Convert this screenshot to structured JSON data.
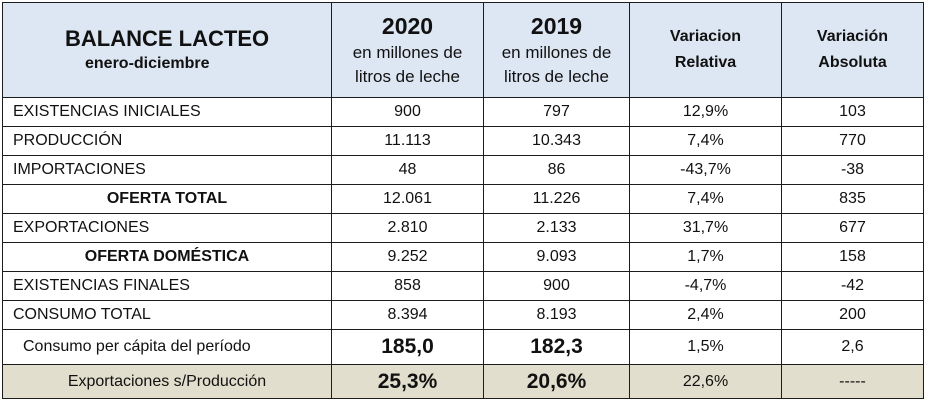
{
  "header": {
    "title": "BALANCE LACTEO",
    "subtitle": "enero-diciembre",
    "col2020_year": "2020",
    "col2020_line1": "en millones de",
    "col2020_line2": "litros de leche",
    "col2019_year": "2019",
    "col2019_line1": "en millones de",
    "col2019_line2": "litros de leche",
    "var_rel_line1": "Variacion",
    "var_rel_line2": "Relativa",
    "var_abs_line1": "Variación",
    "var_abs_line2": "Absoluta"
  },
  "rows": [
    {
      "label": "EXISTENCIAS  INICIALES",
      "v2020": "900",
      "v2019": "797",
      "var_rel": "12,9%",
      "var_abs": "103"
    },
    {
      "label": "PRODUCCIÓN",
      "v2020": "11.113",
      "v2019": "10.343",
      "var_rel": "7,4%",
      "var_abs": "770"
    },
    {
      "label": "IMPORTACIONES",
      "v2020": "48",
      "v2019": "86",
      "var_rel": "-43,7%",
      "var_abs": "-38"
    },
    {
      "label": "OFERTA TOTAL",
      "v2020": "12.061",
      "v2019": "11.226",
      "var_rel": "7,4%",
      "var_abs": "835"
    },
    {
      "label": "EXPORTACIONES",
      "v2020": "2.810",
      "v2019": "2.133",
      "var_rel": "31,7%",
      "var_abs": "677"
    },
    {
      "label": "OFERTA DOMÉSTICA",
      "v2020": "9.252",
      "v2019": "9.093",
      "var_rel": "1,7%",
      "var_abs": "158"
    },
    {
      "label": "EXISTENCIAS FINALES",
      "v2020": "858",
      "v2019": "900",
      "var_rel": "-4,7%",
      "var_abs": "-42"
    },
    {
      "label": "CONSUMO TOTAL",
      "v2020": "8.394",
      "v2019": "8.193",
      "var_rel": "2,4%",
      "var_abs": "200"
    },
    {
      "label": "Consumo per cápita del período",
      "v2020": "185,0",
      "v2019": "182,3",
      "var_rel": "1,5%",
      "var_abs": "2,6"
    },
    {
      "label": "Exportaciones s/Producción",
      "v2020": "25,3%",
      "v2019": "20,6%",
      "var_rel": "22,6%",
      "var_abs": "-----"
    }
  ]
}
